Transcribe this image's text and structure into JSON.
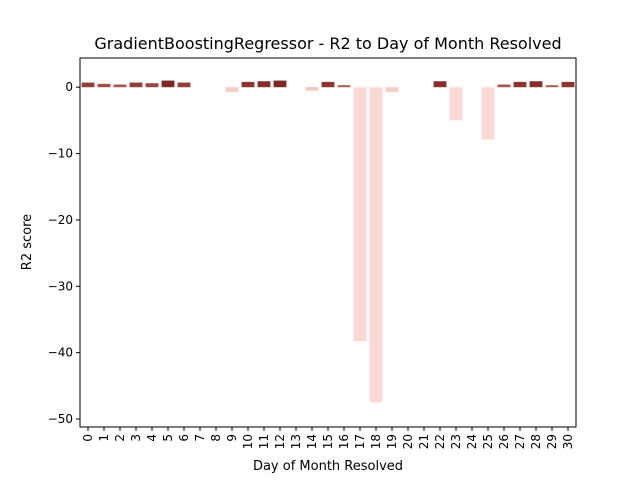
{
  "chart_data": {
    "type": "bar",
    "title": "GradientBoostingRegressor - R2 to Day of Month Resolved",
    "xlabel": "Day of Month Resolved",
    "ylabel": "R2 score",
    "ylim": [
      -51.2,
      4.4
    ],
    "yticks": [
      0,
      -10,
      -20,
      -30,
      -40,
      -50
    ],
    "grid": false,
    "categories": [
      "0",
      "1",
      "2",
      "3",
      "4",
      "5",
      "6",
      "7",
      "8",
      "9",
      "10",
      "11",
      "12",
      "13",
      "14",
      "15",
      "16",
      "17",
      "18",
      "19",
      "20",
      "21",
      "22",
      "23",
      "24",
      "25",
      "26",
      "27",
      "28",
      "29",
      "30"
    ],
    "values": [
      0.7,
      0.5,
      0.4,
      0.7,
      0.6,
      1.0,
      0.7,
      null,
      null,
      -0.7,
      0.8,
      0.9,
      1.0,
      null,
      -0.5,
      0.8,
      0.3,
      -38.3,
      -47.5,
      -0.7,
      null,
      null,
      0.9,
      -5.0,
      null,
      -7.9,
      0.4,
      0.8,
      0.9,
      0.3,
      0.8
    ]
  }
}
